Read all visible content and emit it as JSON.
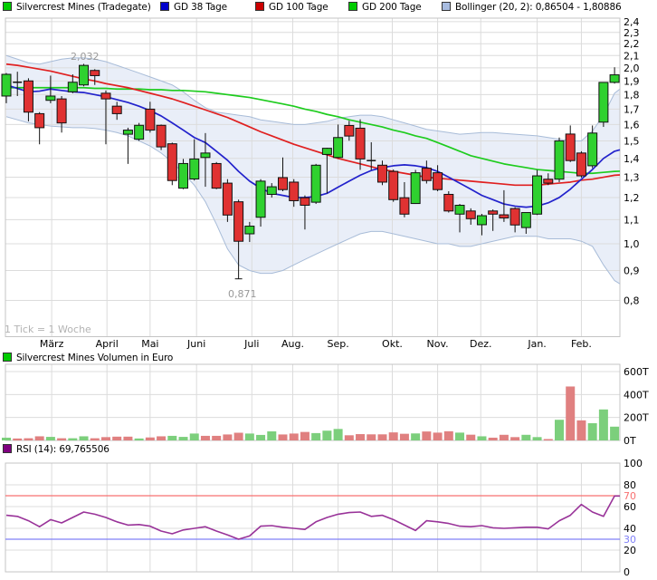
{
  "legend": {
    "items": [
      {
        "label": "Silvercrest Mines (Tradegate)",
        "color": "#00cc00"
      },
      {
        "label": "GD 38 Tage",
        "color": "#0000cc"
      },
      {
        "label": "GD 100 Tage",
        "color": "#cc0000"
      },
      {
        "label": "GD 200 Tage",
        "color": "#00cc00"
      },
      {
        "label": "Bollinger (20, 2): 0,86504 - 1,80886",
        "color": "#a8bce0"
      }
    ]
  },
  "volume_legend": {
    "label": "Silvercrest Mines Volumen in Euro",
    "color": "#00cc00"
  },
  "rsi_legend": {
    "label": "RSI (14): 69,765506",
    "color": "#800080"
  },
  "chart_data": [
    {
      "type": "candlestick",
      "title": "Silvercrest Mines (Tradegate)",
      "scale": "log",
      "ylim": [
        0.8,
        2.4
      ],
      "y_tick_step": 0.1,
      "tick_note": "1 Tick = 1 Woche",
      "x_months": {
        "labels": [
          "März",
          "April",
          "Mai",
          "Juni",
          "Juli",
          "Aug.",
          "Sep.",
          "Okt.",
          "Nov.",
          "Dez.",
          "Jan.",
          "Feb."
        ],
        "week_index": [
          4.1,
          9.1,
          13.0,
          17.2,
          22.2,
          25.9,
          30.0,
          34.9,
          39.0,
          42.9,
          48.0,
          52.0
        ]
      },
      "ohlc": [
        [
          1.79,
          1.96,
          1.74,
          1.95
        ],
        [
          1.89,
          1.97,
          1.79,
          1.89
        ],
        [
          1.9,
          1.92,
          1.62,
          1.68
        ],
        [
          1.67,
          1.68,
          1.48,
          1.58
        ],
        [
          1.76,
          1.94,
          1.74,
          1.79
        ],
        [
          1.77,
          1.79,
          1.55,
          1.61
        ],
        [
          1.82,
          1.95,
          1.81,
          1.89
        ],
        [
          1.87,
          2.032,
          1.86,
          2.02
        ],
        [
          1.98,
          1.99,
          1.87,
          1.94
        ],
        [
          1.81,
          1.83,
          1.48,
          1.77
        ],
        [
          1.72,
          1.75,
          1.63,
          1.67
        ],
        [
          1.54,
          1.58,
          1.37,
          1.565
        ],
        [
          1.51,
          1.61,
          1.5,
          1.595
        ],
        [
          1.7,
          1.75,
          1.55,
          1.565
        ],
        [
          1.595,
          1.6,
          1.447,
          1.465
        ],
        [
          1.483,
          1.49,
          1.26,
          1.283
        ],
        [
          1.245,
          1.397,
          1.24,
          1.372
        ],
        [
          1.291,
          1.51,
          1.283,
          1.397
        ],
        [
          1.405,
          1.547,
          1.252,
          1.43
        ],
        [
          1.372,
          1.38,
          1.24,
          1.245
        ],
        [
          1.27,
          1.29,
          1.09,
          1.12
        ],
        [
          1.18,
          1.19,
          0.871,
          1.01
        ],
        [
          1.04,
          1.09,
          1.007,
          1.072
        ],
        [
          1.11,
          1.29,
          1.07,
          1.28
        ],
        [
          1.215,
          1.27,
          1.2,
          1.252
        ],
        [
          1.298,
          1.405,
          1.23,
          1.238
        ],
        [
          1.275,
          1.29,
          1.157,
          1.185
        ],
        [
          1.199,
          1.21,
          1.058,
          1.164
        ],
        [
          1.178,
          1.37,
          1.17,
          1.363
        ],
        [
          1.422,
          1.46,
          1.22,
          1.457
        ],
        [
          1.405,
          1.6,
          1.4,
          1.52
        ],
        [
          1.594,
          1.624,
          1.501,
          1.529
        ],
        [
          1.577,
          1.633,
          1.338,
          1.397
        ],
        [
          1.388,
          1.492,
          1.338,
          1.388
        ],
        [
          1.363,
          1.388,
          1.26,
          1.275
        ],
        [
          1.33,
          1.34,
          1.18,
          1.19
        ],
        [
          1.199,
          1.275,
          1.11,
          1.124
        ],
        [
          1.172,
          1.338,
          1.17,
          1.323
        ],
        [
          1.347,
          1.388,
          1.268,
          1.283
        ],
        [
          1.323,
          1.363,
          1.23,
          1.238
        ],
        [
          1.215,
          1.23,
          1.131,
          1.138
        ],
        [
          1.124,
          1.17,
          1.046,
          1.164
        ],
        [
          1.138,
          1.15,
          1.078,
          1.104
        ],
        [
          1.078,
          1.125,
          1.034,
          1.117
        ],
        [
          1.138,
          1.145,
          1.052,
          1.124
        ],
        [
          1.121,
          1.235,
          1.09,
          1.107
        ],
        [
          1.149,
          1.155,
          1.046,
          1.077
        ],
        [
          1.066,
          1.131,
          1.04,
          1.131
        ],
        [
          1.124,
          1.338,
          1.12,
          1.307
        ],
        [
          1.29,
          1.32,
          1.26,
          1.27
        ],
        [
          1.29,
          1.52,
          1.275,
          1.5
        ],
        [
          1.541,
          1.594,
          1.38,
          1.388
        ],
        [
          1.43,
          1.44,
          1.298,
          1.307
        ],
        [
          1.36,
          1.594,
          1.347,
          1.547
        ],
        [
          1.615,
          1.89,
          1.585,
          1.889
        ],
        [
          1.889,
          2.005,
          1.88,
          1.946
        ]
      ],
      "low_tick_candle": 21,
      "overlays": [
        {
          "name": "GD 38 Tage",
          "color": "#2222cc",
          "values": [
            1.87,
            1.845,
            1.82,
            1.825,
            1.84,
            1.83,
            1.82,
            1.815,
            1.8,
            1.785,
            1.765,
            1.745,
            1.72,
            1.69,
            1.655,
            1.61,
            1.565,
            1.52,
            1.49,
            1.44,
            1.39,
            1.33,
            1.28,
            1.245,
            1.22,
            1.21,
            1.2,
            1.2,
            1.205,
            1.22,
            1.25,
            1.28,
            1.31,
            1.335,
            1.35,
            1.36,
            1.365,
            1.36,
            1.35,
            1.33,
            1.3,
            1.27,
            1.24,
            1.21,
            1.19,
            1.17,
            1.16,
            1.155,
            1.16,
            1.175,
            1.2,
            1.24,
            1.29,
            1.34,
            1.4,
            1.44
          ]
        },
        {
          "name": "GD 100 Tage",
          "color": "#e02020",
          "values": [
            2.03,
            2.02,
            2.005,
            1.99,
            1.975,
            1.955,
            1.935,
            1.915,
            1.9,
            1.88,
            1.865,
            1.85,
            1.83,
            1.81,
            1.79,
            1.77,
            1.745,
            1.72,
            1.695,
            1.67,
            1.645,
            1.615,
            1.585,
            1.555,
            1.53,
            1.505,
            1.48,
            1.46,
            1.44,
            1.42,
            1.4,
            1.385,
            1.37,
            1.355,
            1.34,
            1.33,
            1.32,
            1.31,
            1.3,
            1.295,
            1.29,
            1.285,
            1.28,
            1.275,
            1.27,
            1.265,
            1.26,
            1.26,
            1.26,
            1.265,
            1.27,
            1.275,
            1.285,
            1.29,
            1.3,
            1.31
          ]
        },
        {
          "name": "GD 200 Tage",
          "color": "#1ecc1e",
          "values": [
            1.85,
            1.85,
            1.85,
            1.85,
            1.85,
            1.85,
            1.85,
            1.85,
            1.845,
            1.845,
            1.84,
            1.84,
            1.84,
            1.835,
            1.835,
            1.83,
            1.83,
            1.825,
            1.82,
            1.81,
            1.8,
            1.79,
            1.78,
            1.765,
            1.75,
            1.735,
            1.72,
            1.7,
            1.685,
            1.665,
            1.65,
            1.63,
            1.615,
            1.6,
            1.585,
            1.565,
            1.55,
            1.53,
            1.515,
            1.49,
            1.465,
            1.44,
            1.415,
            1.4,
            1.385,
            1.37,
            1.36,
            1.35,
            1.34,
            1.335,
            1.33,
            1.325,
            1.32,
            1.32,
            1.325,
            1.33
          ]
        },
        {
          "name": "Bollinger upper",
          "color": "#a8bcd8",
          "values": [
            2.1,
            2.07,
            2.04,
            2.03,
            2.05,
            2.07,
            2.08,
            2.08,
            2.07,
            2.05,
            2.02,
            1.99,
            1.96,
            1.93,
            1.9,
            1.87,
            1.82,
            1.76,
            1.71,
            1.68,
            1.67,
            1.66,
            1.65,
            1.63,
            1.62,
            1.61,
            1.6,
            1.6,
            1.61,
            1.62,
            1.64,
            1.65,
            1.66,
            1.66,
            1.65,
            1.63,
            1.61,
            1.59,
            1.57,
            1.56,
            1.55,
            1.54,
            1.545,
            1.55,
            1.55,
            1.545,
            1.54,
            1.535,
            1.53,
            1.52,
            1.51,
            1.5,
            1.5,
            1.56,
            1.66,
            1.81
          ]
        },
        {
          "name": "Bollinger lower",
          "color": "#a8bcd8",
          "values": [
            1.65,
            1.63,
            1.61,
            1.6,
            1.59,
            1.585,
            1.58,
            1.58,
            1.575,
            1.565,
            1.55,
            1.53,
            1.5,
            1.47,
            1.43,
            1.38,
            1.32,
            1.26,
            1.18,
            1.08,
            0.98,
            0.92,
            0.9,
            0.89,
            0.89,
            0.9,
            0.92,
            0.94,
            0.96,
            0.98,
            1.0,
            1.02,
            1.04,
            1.05,
            1.05,
            1.04,
            1.03,
            1.02,
            1.01,
            1.0,
            1.0,
            0.99,
            0.99,
            1.0,
            1.01,
            1.02,
            1.03,
            1.03,
            1.03,
            1.02,
            1.02,
            1.02,
            1.01,
            0.99,
            0.92,
            0.865
          ]
        }
      ],
      "annotations": [
        {
          "text": "2,032",
          "candle": 7,
          "place": "above"
        },
        {
          "text": "0,871",
          "candle": 21,
          "place": "below"
        }
      ],
      "colors": {
        "up": "#2fd12f",
        "down": "#e03232",
        "wick": "#111111",
        "band_fill": "#e9eef8"
      }
    },
    {
      "type": "bar",
      "title": "Silvercrest Mines Volumen in Euro",
      "unit": "T",
      "ylim": [
        0,
        600
      ],
      "y_ticks": [
        0,
        200,
        400,
        600
      ],
      "values": [
        24,
        17,
        19,
        36,
        31,
        19,
        19,
        36,
        19,
        29,
        33,
        33,
        17,
        26,
        36,
        40,
        31,
        60,
        40,
        40,
        52,
        67,
        60,
        48,
        79,
        52,
        60,
        74,
        64,
        85,
        100,
        45,
        55,
        53,
        53,
        70,
        58,
        61,
        78,
        68,
        80,
        68,
        50,
        36,
        24,
        49,
        29,
        49,
        29,
        12,
        180,
        470,
        175,
        150,
        270,
        120
      ],
      "bar_colors": [
        "g",
        "r",
        "r",
        "r",
        "g",
        "r",
        "g",
        "g",
        "r",
        "r",
        "r",
        "r",
        "g",
        "r",
        "r",
        "g",
        "g",
        "g",
        "r",
        "r",
        "r",
        "r",
        "g",
        "g",
        "g",
        "r",
        "r",
        "r",
        "g",
        "g",
        "g",
        "r",
        "r",
        "r",
        "r",
        "r",
        "r",
        "g",
        "r",
        "r",
        "r",
        "g",
        "r",
        "g",
        "r",
        "r",
        "r",
        "g",
        "g",
        "r",
        "g",
        "r",
        "r",
        "g",
        "g",
        "g"
      ],
      "colors": {
        "up": "#7ccf7c",
        "down": "#e08080"
      }
    },
    {
      "type": "line",
      "title": "RSI (14): 69,765506",
      "ylim": [
        0,
        100
      ],
      "y_ticks": [
        0,
        20,
        30,
        40,
        60,
        70,
        80,
        100
      ],
      "values": [
        52,
        51,
        47,
        41.5,
        48,
        45,
        50,
        55,
        53,
        50,
        46,
        43,
        43.5,
        42,
        37.5,
        35,
        38.5,
        40,
        41.5,
        37.5,
        34,
        30,
        33,
        42,
        42.5,
        41,
        40,
        39,
        46,
        50,
        53,
        54.5,
        55,
        51,
        52,
        48,
        43,
        38,
        47,
        46,
        44.5,
        42,
        41.5,
        42.5,
        40.5,
        40,
        40.5,
        41,
        41,
        39.5,
        47,
        52,
        62,
        55,
        51,
        69.765506
      ],
      "levels": [
        {
          "value": 70,
          "color": "#f87070"
        },
        {
          "value": 30,
          "color": "#8080f8"
        }
      ],
      "color": "#993399"
    }
  ]
}
